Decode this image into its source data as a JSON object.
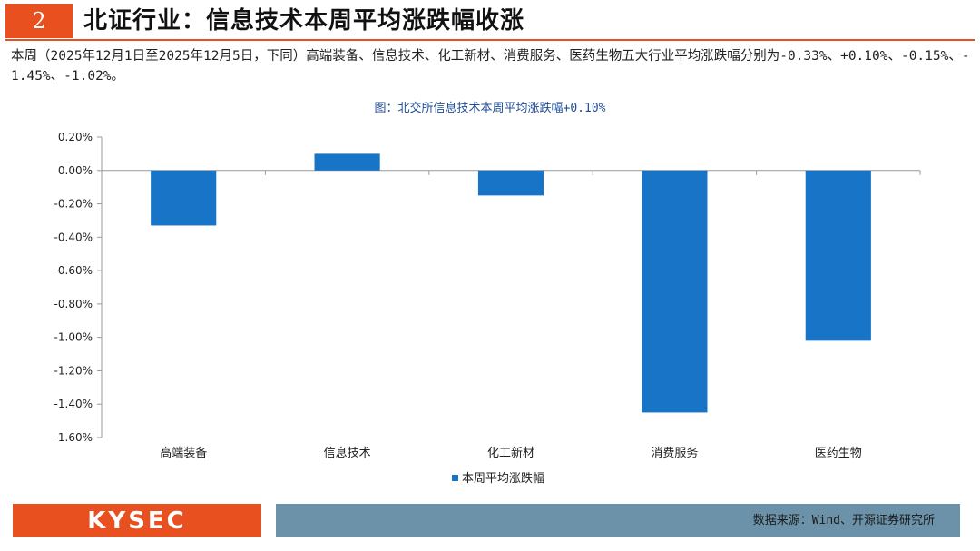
{
  "header": {
    "slide_number": "2",
    "title": "北证行业：信息技术本周平均涨跌幅收涨"
  },
  "intro_text": "本周（2025年12月1日至2025年12月5日，下同）高端装备、信息技术、化工新材、消费服务、医药生物五大行业平均涨跌幅分别为-0.33%、+0.10%、-0.15%、-1.45%、-1.02%。",
  "chart_caption": "图：北交所信息技术本周平均涨跌幅+0.10%",
  "chart_data": {
    "type": "bar",
    "title": "",
    "xlabel": "",
    "ylabel": "",
    "categories": [
      "高端装备",
      "信息技术",
      "化工新材",
      "消费服务",
      "医药生物"
    ],
    "series": [
      {
        "name": "本周平均涨跌幅",
        "values": [
          -0.33,
          0.1,
          -0.15,
          -1.45,
          -1.02
        ],
        "color": "#1874c6"
      }
    ],
    "ylim": [
      -1.6,
      0.2
    ],
    "yticks": [
      "0.20%",
      "0.00%",
      "-0.20%",
      "-0.40%",
      "-0.60%",
      "-0.80%",
      "-1.00%",
      "-1.20%",
      "-1.40%",
      "-1.60%"
    ],
    "ytick_values": [
      0.2,
      0.0,
      -0.2,
      -0.4,
      -0.6,
      -0.8,
      -1.0,
      -1.2,
      -1.4,
      -1.6
    ],
    "grid": false,
    "legend": "bottom"
  },
  "footer": {
    "logo": "KYSEC",
    "source": "数据来源：Wind、开源证券研究所"
  }
}
